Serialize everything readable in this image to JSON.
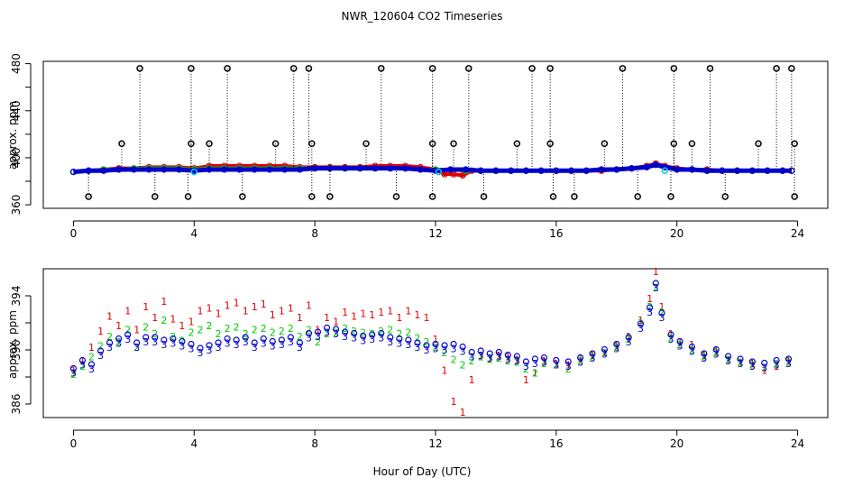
{
  "chart_data": [
    {
      "type": "scatter",
      "title": "NWR_120604  CO2 Timeseries",
      "xlabel": "",
      "ylabel": "approx. ppm",
      "xlim": [
        -1,
        25
      ],
      "ylim": [
        357,
        482
      ],
      "xticks": [
        "0",
        "4",
        "8",
        "12",
        "16",
        "20",
        "24"
      ],
      "yticks": [
        "360",
        "380",
        "400",
        "420",
        "440",
        "460",
        "480"
      ],
      "yticks_labeled": [
        "360",
        "400",
        "440",
        "480"
      ],
      "colors": {
        "line1": "#e00000",
        "line2": "#00cc00",
        "line3": "#0000cc",
        "highlight": "#00d0e0",
        "outlier": "#000000"
      },
      "series": [
        {
          "name": "line1",
          "x": [
            0,
            0.5,
            1,
            1.5,
            2,
            2.5,
            3,
            3.5,
            4,
            4.5,
            5,
            5.5,
            6,
            6.5,
            7,
            7.5,
            8,
            8.5,
            9,
            9.5,
            10,
            10.5,
            11,
            11.5,
            12,
            12.3,
            12.6,
            12.9,
            13.2,
            13.5,
            14,
            14.5,
            15,
            15.5,
            16,
            16.5,
            17,
            17.5,
            18,
            18.5,
            19,
            19.3,
            19.6,
            20,
            20.5,
            21,
            21.5,
            22,
            22.5,
            23,
            23.5,
            23.8
          ],
          "y": [
            388,
            389,
            390,
            391,
            391,
            392,
            392,
            392,
            391,
            393,
            393,
            393,
            393,
            393,
            393,
            392,
            392,
            392,
            392,
            392,
            393,
            393,
            393,
            392,
            390,
            386,
            386,
            385,
            389,
            389,
            389,
            389,
            389,
            389,
            389,
            389,
            389,
            389,
            390,
            391,
            393,
            395,
            393,
            391,
            390,
            390,
            389,
            389,
            389,
            389,
            389,
            389
          ]
        },
        {
          "name": "line2",
          "x": [
            0,
            0.5,
            1,
            1.5,
            2,
            2.5,
            3,
            3.5,
            4,
            4.5,
            5,
            5.5,
            6,
            6.5,
            7,
            7.5,
            8,
            8.5,
            9,
            9.5,
            10,
            10.5,
            11,
            11.5,
            12,
            12.5,
            13,
            13.5,
            14,
            14.5,
            15,
            15.5,
            16,
            16.5,
            17,
            17.5,
            18,
            18.5,
            19,
            19.3,
            19.6,
            20,
            20.5,
            21,
            21.5,
            22,
            22.5,
            23,
            23.5,
            23.8
          ],
          "y": [
            388,
            389,
            390,
            390,
            391,
            391,
            391,
            391,
            390,
            391,
            391,
            391,
            391,
            391,
            391,
            391,
            391,
            391,
            391,
            391,
            391,
            391,
            391,
            390,
            390,
            390,
            389,
            389,
            389,
            389,
            389,
            389,
            389,
            389,
            389,
            390,
            390,
            391,
            392,
            394,
            392,
            390,
            390,
            389,
            389,
            389,
            389,
            389,
            389,
            389
          ]
        },
        {
          "name": "line3",
          "x": [
            0,
            0.5,
            1,
            1.5,
            2,
            2.5,
            3,
            3.5,
            4,
            4.5,
            5,
            5.5,
            6,
            6.5,
            7,
            7.5,
            8,
            8.5,
            9,
            9.5,
            10,
            10.5,
            11,
            11.5,
            12,
            12.5,
            13,
            13.5,
            14,
            14.5,
            15,
            15.5,
            16,
            16.5,
            17,
            17.5,
            18,
            18.5,
            19,
            19.3,
            19.6,
            20,
            20.5,
            21,
            21.5,
            22,
            22.5,
            23,
            23.5,
            23.8
          ],
          "y": [
            388,
            389,
            389,
            390,
            390,
            390,
            390,
            390,
            389,
            390,
            390,
            390,
            390,
            390,
            390,
            390,
            391,
            391,
            391,
            391,
            391,
            391,
            391,
            390,
            389,
            390,
            390,
            389,
            389,
            389,
            389,
            389,
            389,
            389,
            389,
            390,
            390,
            391,
            392,
            394,
            392,
            390,
            390,
            389,
            389,
            389,
            389,
            389,
            389,
            389
          ]
        },
        {
          "name": "outliers_high",
          "x": [
            2.2,
            3.9,
            5.1,
            7.3,
            7.8,
            10.2,
            11.9,
            13.1,
            15.2,
            15.8,
            18.2,
            19.9,
            21.1,
            23.3,
            23.8
          ],
          "y": [
            476,
            476,
            476,
            476,
            476,
            476,
            476,
            476,
            476,
            476,
            476,
            476,
            476,
            476,
            476
          ]
        },
        {
          "name": "outliers_mid",
          "x": [
            1.6,
            3.9,
            4.5,
            6.7,
            7.9,
            9.7,
            11.9,
            12.6,
            14.7,
            15.8,
            17.6,
            19.9,
            20.5,
            22.7,
            23.9
          ],
          "y": [
            412,
            412,
            412,
            412,
            412,
            412,
            412,
            412,
            412,
            412,
            412,
            412,
            412,
            412,
            412
          ]
        },
        {
          "name": "outliers_low",
          "x": [
            0.5,
            2.7,
            3.8,
            5.6,
            7.9,
            8.5,
            10.7,
            11.9,
            13.6,
            15.9,
            16.6,
            18.7,
            19.8,
            21.6,
            23.9
          ],
          "y": [
            367,
            367,
            367,
            367,
            367,
            367,
            367,
            367,
            367,
            367,
            367,
            367,
            367,
            367,
            367
          ]
        },
        {
          "name": "highlight",
          "x": [
            4.0,
            12.1,
            19.6
          ],
          "y": [
            388,
            388,
            389
          ]
        }
      ]
    },
    {
      "type": "scatter",
      "title": "",
      "xlabel": "Hour of Day (UTC)",
      "ylabel": "approx. ppm",
      "xlim": [
        -1,
        25
      ],
      "ylim": [
        385,
        396
      ],
      "xticks": [
        "0",
        "4",
        "8",
        "12",
        "16",
        "20",
        "24"
      ],
      "yticks": [
        "386",
        "388",
        "390",
        "392",
        "394"
      ],
      "yticks_labeled": [
        "386",
        "390",
        "394"
      ],
      "colors": {
        "line1": "#e00000",
        "line2": "#00cc00",
        "line3": "#0000cc"
      },
      "series": [
        {
          "name": "line1",
          "marker": "1",
          "x": [
            0,
            0.3,
            0.6,
            0.9,
            1.2,
            1.5,
            1.8,
            2.1,
            2.4,
            2.7,
            3.0,
            3.3,
            3.6,
            3.9,
            4.2,
            4.5,
            4.8,
            5.1,
            5.4,
            5.7,
            6.0,
            6.3,
            6.6,
            6.9,
            7.2,
            7.5,
            7.8,
            8.1,
            8.4,
            8.7,
            9.0,
            9.3,
            9.6,
            9.9,
            10.2,
            10.5,
            10.8,
            11.1,
            11.4,
            11.7,
            12.0,
            12.3,
            12.6,
            12.9,
            13.2,
            13.5,
            13.8,
            14.1,
            14.4,
            14.7,
            15.0,
            15.3,
            15.6,
            16.0,
            16.4,
            16.8,
            17.2,
            17.6,
            18.0,
            18.4,
            18.8,
            19.1,
            19.3,
            19.5,
            19.8,
            20.1,
            20.5,
            20.9,
            21.3,
            21.7,
            22.1,
            22.5,
            22.9,
            23.3,
            23.7
          ],
          "y": [
            388.5,
            389.2,
            390.2,
            391.4,
            392.5,
            391.8,
            392.9,
            391.5,
            393.2,
            392.4,
            393.6,
            392.3,
            391.8,
            392.1,
            392.9,
            393.1,
            392.7,
            393.3,
            393.5,
            392.9,
            393.2,
            393.4,
            392.6,
            392.9,
            393.1,
            392.4,
            393.3,
            391.5,
            392.4,
            392.1,
            392.8,
            392.5,
            392.7,
            392.6,
            392.8,
            392.9,
            392.4,
            392.9,
            392.6,
            392.4,
            390.8,
            388.5,
            386.2,
            385.4,
            387.8,
            389.5,
            389.3,
            389.6,
            389.5,
            389.3,
            387.8,
            388.3,
            389.2,
            389.0,
            388.9,
            389.4,
            389.6,
            389.8,
            390.3,
            391.0,
            392.2,
            393.8,
            395.8,
            393.2,
            391.2,
            390.6,
            390.4,
            389.6,
            389.9,
            389.3,
            389.1,
            389.0,
            388.5,
            388.8,
            389.2
          ]
        },
        {
          "name": "line2",
          "marker": "2",
          "x": [
            0,
            0.3,
            0.6,
            0.9,
            1.2,
            1.5,
            1.8,
            2.1,
            2.4,
            2.7,
            3.0,
            3.3,
            3.6,
            3.9,
            4.2,
            4.5,
            4.8,
            5.1,
            5.4,
            5.7,
            6.0,
            6.3,
            6.6,
            6.9,
            7.2,
            7.5,
            7.8,
            8.1,
            8.4,
            8.7,
            9.0,
            9.3,
            9.6,
            9.9,
            10.2,
            10.5,
            10.8,
            11.1,
            11.4,
            11.7,
            12.0,
            12.3,
            12.6,
            12.9,
            13.2,
            13.5,
            13.8,
            14.1,
            14.4,
            14.7,
            15.0,
            15.3,
            15.6,
            16.0,
            16.4,
            16.8,
            17.2,
            17.6,
            18.0,
            18.4,
            18.8,
            19.1,
            19.3,
            19.5,
            19.8,
            20.1,
            20.5,
            20.9,
            21.3,
            21.7,
            22.1,
            22.5,
            22.9,
            23.3,
            23.7
          ],
          "y": [
            388.2,
            388.8,
            389.5,
            390.3,
            391.0,
            390.6,
            391.5,
            390.2,
            391.7,
            391.2,
            392.2,
            391.0,
            390.7,
            391.3,
            391.5,
            391.8,
            391.2,
            391.6,
            391.7,
            391.2,
            391.5,
            391.6,
            391.3,
            391.4,
            391.6,
            391.0,
            391.5,
            390.6,
            391.2,
            391.3,
            391.6,
            391.4,
            391.3,
            391.2,
            391.4,
            391.5,
            391.2,
            391.3,
            390.9,
            390.6,
            390.2,
            389.8,
            389.3,
            388.9,
            389.2,
            389.5,
            389.3,
            389.4,
            389.2,
            389.1,
            388.6,
            388.3,
            389.0,
            388.9,
            388.6,
            389.2,
            389.5,
            389.8,
            390.2,
            390.8,
            392.0,
            393.2,
            394.6,
            392.8,
            390.9,
            390.4,
            390.0,
            389.5,
            389.8,
            389.3,
            389.1,
            388.9,
            388.7,
            389.0,
            389.1
          ]
        },
        {
          "name": "line3",
          "marker": "3",
          "x": [
            0,
            0.3,
            0.6,
            0.9,
            1.2,
            1.5,
            1.8,
            2.1,
            2.4,
            2.7,
            3.0,
            3.3,
            3.6,
            3.9,
            4.2,
            4.5,
            4.8,
            5.1,
            5.4,
            5.7,
            6.0,
            6.3,
            6.6,
            6.9,
            7.2,
            7.5,
            7.8,
            8.1,
            8.4,
            8.7,
            9.0,
            9.3,
            9.6,
            9.9,
            10.2,
            10.5,
            10.8,
            11.1,
            11.4,
            11.7,
            12.0,
            12.3,
            12.6,
            12.9,
            13.2,
            13.5,
            13.8,
            14.1,
            14.4,
            14.7,
            15.0,
            15.3,
            15.6,
            16.0,
            16.4,
            16.8,
            17.2,
            17.6,
            18.0,
            18.4,
            18.8,
            19.1,
            19.3,
            19.5,
            19.8,
            20.1,
            20.5,
            20.9,
            21.3,
            21.7,
            22.1,
            22.5,
            22.9,
            23.3,
            23.7
          ],
          "y": [
            388.3,
            388.9,
            388.6,
            389.6,
            390.2,
            390.5,
            390.8,
            390.2,
            390.6,
            390.6,
            390.4,
            390.5,
            390.3,
            390.1,
            389.8,
            390.0,
            390.2,
            390.5,
            390.4,
            390.6,
            390.2,
            390.5,
            390.3,
            390.4,
            390.6,
            390.2,
            390.9,
            391.0,
            391.3,
            391.2,
            391.0,
            390.9,
            390.7,
            390.8,
            390.9,
            390.6,
            390.5,
            390.4,
            390.2,
            390.0,
            390.1,
            390.0,
            390.1,
            389.9,
            389.5,
            389.6,
            389.4,
            389.5,
            389.3,
            389.2,
            388.8,
            389.0,
            389.1,
            388.9,
            388.8,
            389.1,
            389.4,
            389.7,
            390.1,
            390.6,
            391.6,
            392.8,
            394.6,
            392.4,
            390.8,
            390.3,
            389.9,
            389.4,
            389.7,
            389.2,
            389.0,
            388.8,
            388.7,
            388.9,
            389.0
          ]
        }
      ]
    }
  ]
}
